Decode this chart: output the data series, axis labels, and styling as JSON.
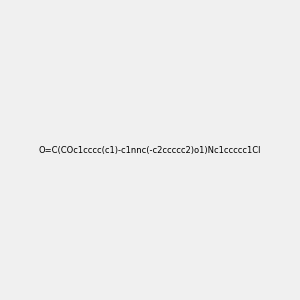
{
  "smiles": "O=C(COc1cccc(c1)-c1nnc(-c2ccccc2)o1)Nc1ccccc1Cl",
  "title": "",
  "bg_color": "#f0f0f0",
  "img_size": [
    300,
    300
  ],
  "atom_colors": {
    "N": [
      0,
      0,
      1
    ],
    "O": [
      1,
      0,
      0
    ],
    "Cl": [
      0,
      0.5,
      0
    ]
  }
}
